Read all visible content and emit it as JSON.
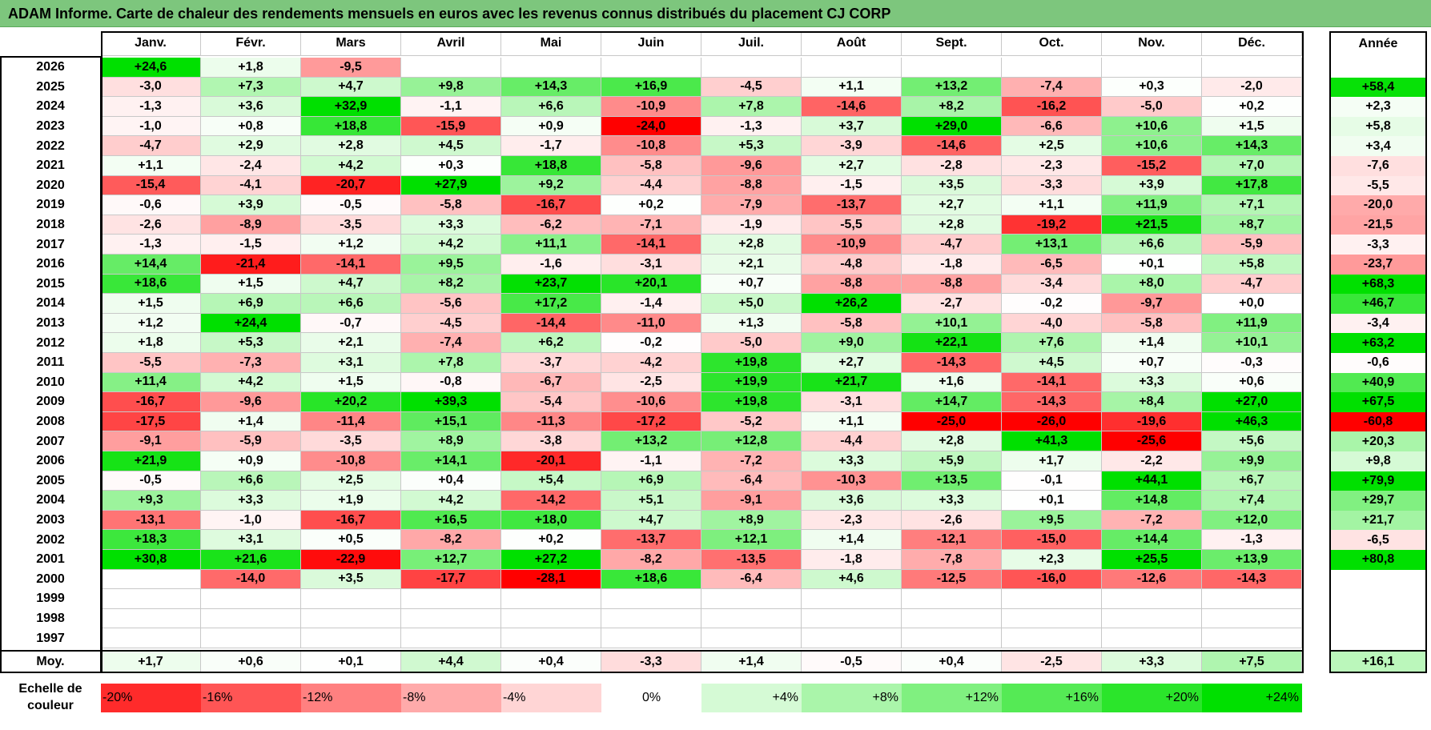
{
  "title": "ADAM Informe. Carte de chaleur des rendements mensuels en euros avec les revenus connus distribués du placement CJ CORP",
  "colors": {
    "title_bar": "#7dc67d",
    "negative_max": "#ff0000",
    "neutral": "#ffffff",
    "positive_max": "#00e000"
  },
  "chart_data": {
    "type": "heatmap",
    "title": "ADAM Informe. Carte de chaleur des rendements mensuels en euros avec les revenus connus distribués du placement CJ CORP",
    "months": [
      "Janv.",
      "Févr.",
      "Mars",
      "Avril",
      "Mai",
      "Juin",
      "Juil.",
      "Août",
      "Sept.",
      "Oct.",
      "Nov.",
      "Déc."
    ],
    "year_column_label": "Année",
    "avg_row_label": "Moy.",
    "rows": [
      {
        "year": "2026",
        "values": [
          "+24,6",
          "+1,8",
          "-9,5",
          "",
          "",
          "",
          "",
          "",
          "",
          "",
          "",
          ""
        ],
        "annual": ""
      },
      {
        "year": "2025",
        "values": [
          "-3,0",
          "+7,3",
          "+4,7",
          "+9,8",
          "+14,3",
          "+16,9",
          "-4,5",
          "+1,1",
          "+13,2",
          "-7,4",
          "+0,3",
          "-2,0"
        ],
        "annual": "+58,4"
      },
      {
        "year": "2024",
        "values": [
          "-1,3",
          "+3,6",
          "+32,9",
          "-1,1",
          "+6,6",
          "-10,9",
          "+7,8",
          "-14,6",
          "+8,2",
          "-16,2",
          "-5,0",
          "+0,2"
        ],
        "annual": "+2,3"
      },
      {
        "year": "2023",
        "values": [
          "-1,0",
          "+0,8",
          "+18,8",
          "-15,9",
          "+0,9",
          "-24,0",
          "-1,3",
          "+3,7",
          "+29,0",
          "-6,6",
          "+10,6",
          "+1,5"
        ],
        "annual": "+5,8"
      },
      {
        "year": "2022",
        "values": [
          "-4,7",
          "+2,9",
          "+2,8",
          "+4,5",
          "-1,7",
          "-10,8",
          "+5,3",
          "-3,9",
          "-14,6",
          "+2,5",
          "+10,6",
          "+14,3"
        ],
        "annual": "+3,4"
      },
      {
        "year": "2021",
        "values": [
          "+1,1",
          "-2,4",
          "+4,2",
          "+0,3",
          "+18,8",
          "-5,8",
          "-9,6",
          "+2,7",
          "-2,8",
          "-2,3",
          "-15,2",
          "+7,0"
        ],
        "annual": "-7,6"
      },
      {
        "year": "2020",
        "values": [
          "-15,4",
          "-4,1",
          "-20,7",
          "+27,9",
          "+9,2",
          "-4,4",
          "-8,8",
          "-1,5",
          "+3,5",
          "-3,3",
          "+3,9",
          "+17,8"
        ],
        "annual": "-5,5"
      },
      {
        "year": "2019",
        "values": [
          "-0,6",
          "+3,9",
          "-0,5",
          "-5,8",
          "-16,7",
          "+0,2",
          "-7,9",
          "-13,7",
          "+2,7",
          "+1,1",
          "+11,9",
          "+7,1"
        ],
        "annual": "-20,0"
      },
      {
        "year": "2018",
        "values": [
          "-2,6",
          "-8,9",
          "-3,5",
          "+3,3",
          "-6,2",
          "-7,1",
          "-1,9",
          "-5,5",
          "+2,8",
          "-19,2",
          "+21,5",
          "+8,7"
        ],
        "annual": "-21,5"
      },
      {
        "year": "2017",
        "values": [
          "-1,3",
          "-1,5",
          "+1,2",
          "+4,2",
          "+11,1",
          "-14,1",
          "+2,8",
          "-10,9",
          "-4,7",
          "+13,1",
          "+6,6",
          "-5,9"
        ],
        "annual": "-3,3"
      },
      {
        "year": "2016",
        "values": [
          "+14,4",
          "-21,4",
          "-14,1",
          "+9,5",
          "-1,6",
          "-3,1",
          "+2,1",
          "-4,8",
          "-1,8",
          "-6,5",
          "+0,1",
          "+5,8"
        ],
        "annual": "-23,7"
      },
      {
        "year": "2015",
        "values": [
          "+18,6",
          "+1,5",
          "+4,7",
          "+8,2",
          "+23,7",
          "+20,1",
          "+0,7",
          "-8,8",
          "-8,8",
          "-3,4",
          "+8,0",
          "-4,7"
        ],
        "annual": "+68,3"
      },
      {
        "year": "2014",
        "values": [
          "+1,5",
          "+6,9",
          "+6,6",
          "-5,6",
          "+17,2",
          "-1,4",
          "+5,0",
          "+26,2",
          "-2,7",
          "-0,2",
          "-9,7",
          "+0,0"
        ],
        "annual": "+46,7"
      },
      {
        "year": "2013",
        "values": [
          "+1,2",
          "+24,4",
          "-0,7",
          "-4,5",
          "-14,4",
          "-11,0",
          "+1,3",
          "-5,8",
          "+10,1",
          "-4,0",
          "-5,8",
          "+11,9"
        ],
        "annual": "-3,4"
      },
      {
        "year": "2012",
        "values": [
          "+1,8",
          "+5,3",
          "+2,1",
          "-7,4",
          "+6,2",
          "-0,2",
          "-5,0",
          "+9,0",
          "+22,1",
          "+7,6",
          "+1,4",
          "+10,1"
        ],
        "annual": "+63,2"
      },
      {
        "year": "2011",
        "values": [
          "-5,5",
          "-7,3",
          "+3,1",
          "+7,8",
          "-3,7",
          "-4,2",
          "+19,8",
          "+2,7",
          "-14,3",
          "+4,5",
          "+0,7",
          "-0,3"
        ],
        "annual": "-0,6"
      },
      {
        "year": "2010",
        "values": [
          "+11,4",
          "+4,2",
          "+1,5",
          "-0,8",
          "-6,7",
          "-2,5",
          "+19,9",
          "+21,7",
          "+1,6",
          "-14,1",
          "+3,3",
          "+0,6"
        ],
        "annual": "+40,9"
      },
      {
        "year": "2009",
        "values": [
          "-16,7",
          "-9,6",
          "+20,2",
          "+39,3",
          "-5,4",
          "-10,6",
          "+19,8",
          "-3,1",
          "+14,7",
          "-14,3",
          "+8,4",
          "+27,0"
        ],
        "annual": "+67,5"
      },
      {
        "year": "2008",
        "values": [
          "-17,5",
          "+1,4",
          "-11,4",
          "+15,1",
          "-11,3",
          "-17,2",
          "-5,2",
          "+1,1",
          "-25,0",
          "-26,0",
          "-19,6",
          "+46,3"
        ],
        "annual": "-60,8"
      },
      {
        "year": "2007",
        "values": [
          "-9,1",
          "-5,9",
          "-3,5",
          "+8,9",
          "-3,8",
          "+13,2",
          "+12,8",
          "-4,4",
          "+2,8",
          "+41,3",
          "-25,6",
          "+5,6"
        ],
        "annual": "+20,3"
      },
      {
        "year": "2006",
        "values": [
          "+21,9",
          "+0,9",
          "-10,8",
          "+14,1",
          "-20,1",
          "-1,1",
          "-7,2",
          "+3,3",
          "+5,9",
          "+1,7",
          "-2,2",
          "+9,9"
        ],
        "annual": "+9,8"
      },
      {
        "year": "2005",
        "values": [
          "-0,5",
          "+6,6",
          "+2,5",
          "+0,4",
          "+5,4",
          "+6,9",
          "-6,4",
          "-10,3",
          "+13,5",
          "-0,1",
          "+44,1",
          "+6,7"
        ],
        "annual": "+79,9"
      },
      {
        "year": "2004",
        "values": [
          "+9,3",
          "+3,3",
          "+1,9",
          "+4,2",
          "-14,2",
          "+5,1",
          "-9,1",
          "+3,6",
          "+3,3",
          "+0,1",
          "+14,8",
          "+7,4"
        ],
        "annual": "+29,7"
      },
      {
        "year": "2003",
        "values": [
          "-13,1",
          "-1,0",
          "-16,7",
          "+16,5",
          "+18,0",
          "+4,7",
          "+8,9",
          "-2,3",
          "-2,6",
          "+9,5",
          "-7,2",
          "+12,0"
        ],
        "annual": "+21,7"
      },
      {
        "year": "2002",
        "values": [
          "+18,3",
          "+3,1",
          "+0,5",
          "-8,2",
          "+0,2",
          "-13,7",
          "+12,1",
          "+1,4",
          "-12,1",
          "-15,0",
          "+14,4",
          "-1,3"
        ],
        "annual": "-6,5"
      },
      {
        "year": "2001",
        "values": [
          "+30,8",
          "+21,6",
          "-22,9",
          "+12,7",
          "+27,2",
          "-8,2",
          "-13,5",
          "-1,8",
          "-7,8",
          "+2,3",
          "+25,5",
          "+13,9"
        ],
        "annual": "+80,8"
      },
      {
        "year": "2000",
        "values": [
          "",
          "-14,0",
          "+3,5",
          "-17,7",
          "-28,1",
          "+18,6",
          "-6,4",
          "+4,6",
          "-12,5",
          "-16,0",
          "-12,6",
          "-14,3"
        ],
        "annual": ""
      },
      {
        "year": "1999",
        "values": [
          "",
          "",
          "",
          "",
          "",
          "",
          "",
          "",
          "",
          "",
          "",
          ""
        ],
        "annual": ""
      },
      {
        "year": "1998",
        "values": [
          "",
          "",
          "",
          "",
          "",
          "",
          "",
          "",
          "",
          "",
          "",
          ""
        ],
        "annual": ""
      },
      {
        "year": "1997",
        "values": [
          "",
          "",
          "",
          "",
          "",
          "",
          "",
          "",
          "",
          "",
          "",
          ""
        ],
        "annual": ""
      }
    ],
    "averages": [
      "+1,7",
      "+0,6",
      "+0,1",
      "+4,4",
      "+0,4",
      "-3,3",
      "+1,4",
      "-0,5",
      "+0,4",
      "-2,5",
      "+3,3",
      "+7,5"
    ],
    "annual_average": "+16,1",
    "scale_label": "Echelle de couleur",
    "scale": [
      "-20%",
      "-16%",
      "-12%",
      "-8%",
      "-4%",
      "0%",
      "+4%",
      "+8%",
      "+12%",
      "+16%",
      "+20%",
      "+24%"
    ],
    "monthly_color_range": [
      -24,
      24
    ],
    "annual_color_range": [
      -60,
      60
    ]
  }
}
